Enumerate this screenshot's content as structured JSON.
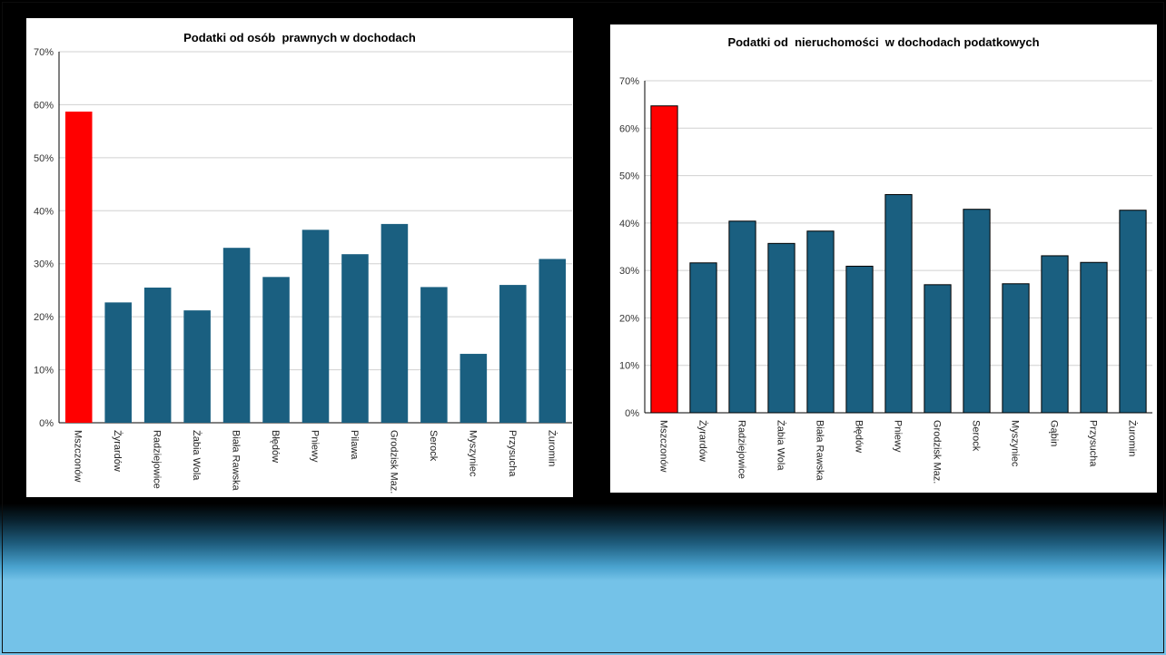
{
  "colors": {
    "bar": "#1a5f80",
    "highlight": "#ff0000",
    "grid": "#d0d0d0"
  },
  "chart_data": [
    {
      "type": "bar",
      "title": "Podatki od osób  prawnych w dochodach",
      "categories": [
        "Mszczonów",
        "Żyrardów",
        "Radziejowice",
        "Żabia Wola",
        "Biała Rawska",
        "Błędów",
        "Pniewy",
        "Pilawa",
        "Grodzisk Maz.",
        "Serock",
        "Myszyniec",
        "Przysucha",
        "Żuromin"
      ],
      "values": [
        58.7,
        22.7,
        25.5,
        21.2,
        33.0,
        27.5,
        36.4,
        31.8,
        37.5,
        25.6,
        13.0,
        26.0,
        30.9
      ],
      "highlight_index": 0,
      "ylim": [
        0,
        70
      ],
      "yticks": [
        "0%",
        "10%",
        "20%",
        "30%",
        "40%",
        "50%",
        "60%",
        "70%"
      ],
      "grid": true,
      "bar_outline": false
    },
    {
      "type": "bar",
      "title": "Podatki od  nieruchomości  w dochodach podatkowych",
      "categories": [
        "Mszczonów",
        "Żyrardów",
        "Radziejowice",
        "Żabia Wola",
        "Biała Rawska",
        "Błędów",
        "Pniewy",
        "Grodzisk Maz.",
        "Serock",
        "Myszyniec",
        "Gąbin",
        "Przysucha",
        "Żuromin"
      ],
      "values": [
        64.7,
        31.6,
        40.4,
        35.7,
        38.3,
        30.9,
        46.0,
        27.0,
        42.9,
        27.2,
        33.1,
        31.7,
        42.7
      ],
      "highlight_index": 0,
      "ylim": [
        0,
        70
      ],
      "yticks": [
        "0%",
        "10%",
        "20%",
        "30%",
        "40%",
        "50%",
        "60%",
        "70%"
      ],
      "grid": true,
      "bar_outline": true
    }
  ]
}
